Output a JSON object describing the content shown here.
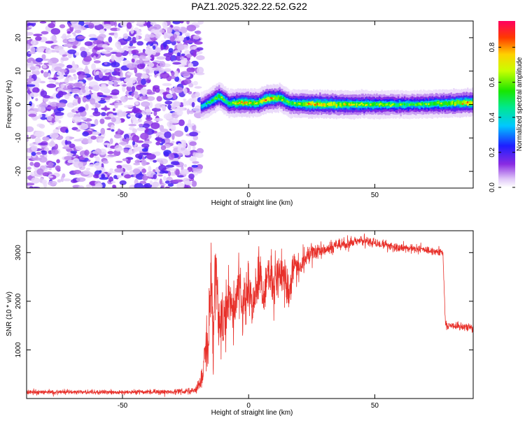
{
  "title": "PAZ1.2025.322.22.52.G22",
  "chart_data": [
    {
      "type": "heatmap",
      "xlabel": "Height of straight line (km)",
      "ylabel": "Frequency (Hz)",
      "xlim": [
        -88,
        89
      ],
      "ylim": [
        -25,
        25
      ],
      "xticks": [
        -50,
        0,
        50
      ],
      "xtick_labels": [
        "-50",
        "0",
        "50"
      ],
      "yticks": [
        -20,
        -10,
        0,
        10,
        20
      ],
      "ytick_labels": [
        "-20",
        "-10",
        "0",
        "10",
        "20"
      ],
      "noise_region_x": [
        -88,
        -19
      ],
      "ridge": [
        {
          "x": -19,
          "y": -0.5,
          "amp": 0.45
        },
        {
          "x": -16,
          "y": 0.6,
          "amp": 0.55
        },
        {
          "x": -12,
          "y": 2.5,
          "amp": 0.7
        },
        {
          "x": -8,
          "y": 0.3,
          "amp": 0.6
        },
        {
          "x": -3,
          "y": 0.6,
          "amp": 0.85
        },
        {
          "x": 3,
          "y": 0.4,
          "amp": 0.7
        },
        {
          "x": 7,
          "y": 1.6,
          "amp": 0.9
        },
        {
          "x": 12,
          "y": 2.0,
          "amp": 0.75
        },
        {
          "x": 16,
          "y": 0.4,
          "amp": 0.65
        },
        {
          "x": 25,
          "y": 0.1,
          "amp": 0.85
        },
        {
          "x": 35,
          "y": 0.0,
          "amp": 0.8
        },
        {
          "x": 50,
          "y": 0.0,
          "amp": 0.7
        },
        {
          "x": 65,
          "y": 0.0,
          "amp": 0.6
        },
        {
          "x": 78,
          "y": 0.3,
          "amp": 0.75
        },
        {
          "x": 89,
          "y": 0.6,
          "amp": 0.9
        }
      ],
      "colorbar": {
        "label": "Normalized spectral amplitude",
        "ticks": [
          0.0,
          0.2,
          0.4,
          0.6,
          0.8
        ],
        "tick_labels": [
          "0.0",
          "0.2",
          "0.4",
          "0.6",
          "0.8"
        ],
        "range": [
          0,
          0.95
        ]
      }
    },
    {
      "type": "line",
      "xlabel": "Height of straight line (km)",
      "ylabel": "SNR (10 * v/v)",
      "xlim": [
        -88,
        89
      ],
      "ylim": [
        0,
        3450
      ],
      "xticks": [
        -50,
        0,
        50
      ],
      "xtick_labels": [
        "-50",
        "0",
        "50"
      ],
      "yticks": [
        1000,
        2000,
        3000
      ],
      "ytick_labels": [
        "1000",
        "2000",
        "3000"
      ],
      "color": "#e8302a",
      "series": [
        {
          "name": "SNR",
          "x": [
            -88,
            -70,
            -50,
            -30,
            -21,
            -18,
            -17,
            -16,
            -15,
            -14,
            -13,
            -12,
            -11,
            -10,
            -8,
            -6,
            -4,
            -2,
            0,
            2,
            4,
            6,
            8,
            10,
            12,
            14,
            16,
            18,
            20,
            25,
            30,
            35,
            40,
            45,
            50,
            55,
            60,
            65,
            70,
            75,
            77,
            78,
            80,
            85,
            89
          ],
          "y": [
            130,
            135,
            130,
            135,
            160,
            450,
            1300,
            900,
            2600,
            1200,
            2900,
            1600,
            1700,
            1500,
            2100,
            1700,
            2500,
            2000,
            2300,
            1900,
            2600,
            2100,
            2700,
            2200,
            2700,
            2500,
            2100,
            2800,
            2700,
            3000,
            3050,
            3150,
            3200,
            3250,
            3200,
            3150,
            3100,
            3080,
            3050,
            3020,
            2980,
            1500,
            1500,
            1470,
            1450
          ],
          "noise": [
            25,
            25,
            25,
            25,
            30,
            120,
            350,
            350,
            420,
            400,
            400,
            380,
            350,
            350,
            320,
            320,
            300,
            300,
            280,
            260,
            260,
            250,
            240,
            240,
            230,
            220,
            200,
            180,
            150,
            100,
            70,
            60,
            55,
            50,
            50,
            45,
            45,
            45,
            45,
            45,
            45,
            40,
            40,
            40,
            40
          ]
        }
      ]
    }
  ]
}
